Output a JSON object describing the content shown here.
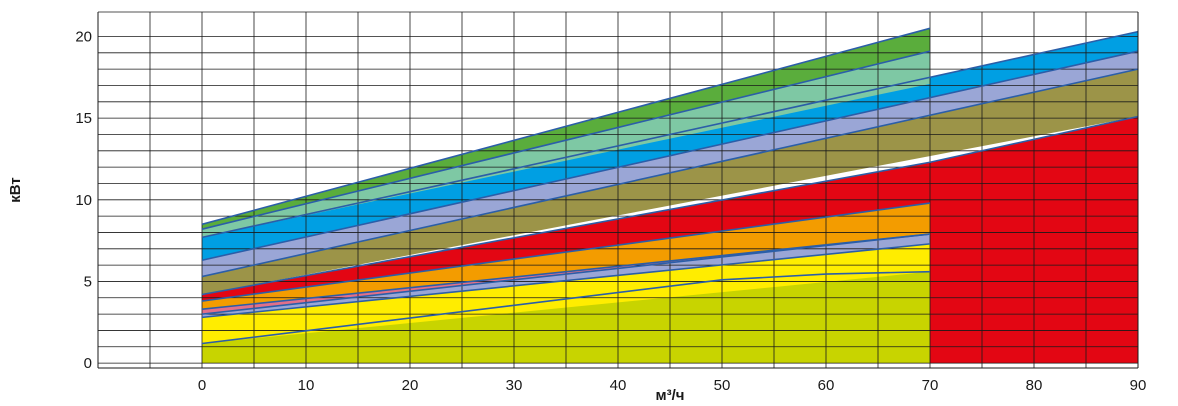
{
  "chart_data": {
    "type": "area",
    "xlabel": "м³/ч",
    "ylabel": "кВт",
    "xlim": [
      0,
      90
    ],
    "ylim": [
      0,
      20
    ],
    "xlim_plot": [
      -10,
      90
    ],
    "ylim_plot": [
      -0.3,
      21.5
    ],
    "x_ticks": [
      0,
      10,
      20,
      30,
      40,
      50,
      60,
      70,
      80,
      90
    ],
    "y_ticks": [
      0,
      5,
      10,
      15,
      20
    ],
    "grid": true,
    "minor_y_step": 1,
    "bands": [
      {
        "color": "#c8d400",
        "x": [
          0,
          70
        ],
        "lower": [
          0,
          0
        ],
        "upper": [
          1.2,
          5.6
        ],
        "mid": [
          [
            50,
            5.1
          ],
          [
            60,
            5.45
          ]
        ]
      },
      {
        "color": "#ffed00",
        "x": [
          0,
          70
        ],
        "lower": [
          1.2,
          5.6
        ],
        "upper": [
          2.8,
          7.3
        ]
      },
      {
        "color": "#9aa6d6",
        "x": [
          0,
          70
        ],
        "lower": [
          2.8,
          7.3
        ],
        "upper": [
          3.0,
          7.9
        ]
      },
      {
        "color": "#e27089",
        "x": [
          0,
          70
        ],
        "lower": [
          3.0,
          7.9
        ],
        "upper": [
          3.3,
          7.9
        ]
      },
      {
        "color": "#f39c00",
        "x": [
          0,
          70
        ],
        "lower": [
          3.3,
          7.9
        ],
        "upper": [
          3.8,
          9.8
        ]
      },
      {
        "color": "#e30613",
        "x": [
          0,
          70
        ],
        "lower": [
          3.8,
          9.8
        ],
        "upper": [
          4.2,
          12.3
        ]
      },
      {
        "color": "#e30613",
        "x": [
          70,
          90
        ],
        "lower": [
          0,
          0
        ],
        "upper": [
          12.3,
          15.1
        ]
      },
      {
        "color": "#9c9448",
        "x": [
          0,
          90
        ],
        "lower": [
          4.2,
          15.1
        ],
        "upper": [
          5.3,
          18.0
        ]
      },
      {
        "color": "#9aa6d6",
        "x": [
          0,
          90
        ],
        "lower": [
          5.3,
          18.0
        ],
        "upper": [
          6.3,
          19.1
        ]
      },
      {
        "color": "#009fe3",
        "x": [
          0,
          90
        ],
        "lower": [
          6.3,
          19.1
        ],
        "upper": [
          7.7,
          20.3
        ]
      },
      {
        "color": "#7ec8a4",
        "x": [
          0,
          70
        ],
        "lower": [
          7.7,
          17.1
        ],
        "upper": [
          8.2,
          19.1
        ]
      },
      {
        "color": "#5aad3c",
        "x": [
          0,
          70
        ],
        "lower": [
          8.2,
          19.1
        ],
        "upper": [
          8.5,
          20.5
        ]
      }
    ],
    "lines": [
      {
        "x": [
          0,
          50,
          60,
          70
        ],
        "y": [
          1.2,
          5.1,
          5.45,
          5.6
        ]
      },
      {
        "x": [
          0,
          70
        ],
        "y": [
          2.8,
          7.3
        ]
      },
      {
        "x": [
          0,
          70
        ],
        "y": [
          3.0,
          7.9
        ]
      },
      {
        "x": [
          0,
          70
        ],
        "y": [
          3.3,
          7.9
        ]
      },
      {
        "x": [
          0,
          70
        ],
        "y": [
          3.8,
          9.8
        ]
      },
      {
        "x": [
          0,
          70,
          90
        ],
        "y": [
          4.2,
          12.3,
          15.1
        ]
      },
      {
        "x": [
          0,
          90
        ],
        "y": [
          5.3,
          18.0
        ]
      },
      {
        "x": [
          0,
          90
        ],
        "y": [
          6.3,
          19.1
        ]
      },
      {
        "x": [
          0,
          90
        ],
        "y": [
          7.7,
          20.3
        ]
      },
      {
        "x": [
          0,
          70
        ],
        "y": [
          8.2,
          19.1
        ]
      },
      {
        "x": [
          0,
          70
        ],
        "y": [
          8.5,
          20.5
        ]
      }
    ],
    "colors": {
      "line": "#2b5ea8",
      "grid": "#1a1a1a",
      "text": "#1a1a1a"
    }
  }
}
